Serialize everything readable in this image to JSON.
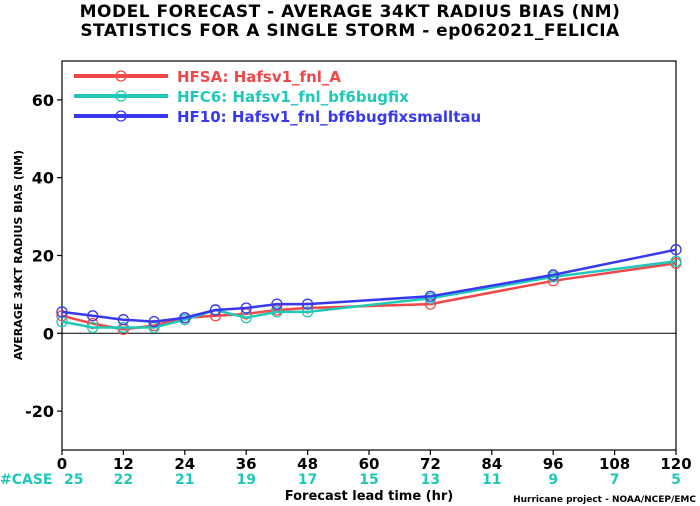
{
  "title_line1": "MODEL FORECAST - AVERAGE 34KT RADIUS BIAS (NM)",
  "title_line2": "STATISTICS FOR A SINGLE STORM - ep062021_FELICIA",
  "credit": "Hurricane project - NOAA/NCEP/EMC",
  "case_label": "#CASE",
  "colors": {
    "HFSA": "#f04848",
    "HFC6": "#20c8b8",
    "HF10": "#3838f0",
    "case": "#20c8b8"
  },
  "chart_data": {
    "type": "line",
    "xlabel": "Forecast lead time (hr)",
    "ylabel": "AVERAGE 34KT RADIUS BIAS (NM)",
    "xlim": [
      0,
      120
    ],
    "ylim": [
      -30,
      70
    ],
    "x_ticks": [
      0,
      12,
      24,
      36,
      48,
      60,
      72,
      84,
      96,
      108,
      120
    ],
    "y_ticks": [
      -20,
      0,
      20,
      40,
      60
    ],
    "legend_position": "top-left",
    "case_counts": [
      25,
      22,
      21,
      19,
      17,
      15,
      13,
      11,
      9,
      7,
      5
    ],
    "series": [
      {
        "name": "HFSA: Hafsv1_fnl_A",
        "key": "HFSA",
        "x": [
          0,
          6,
          12,
          18,
          24,
          30,
          36,
          42,
          48,
          72,
          96,
          120
        ],
        "y": [
          4.5,
          2.5,
          1.0,
          2.0,
          4.0,
          4.5,
          5.0,
          6.0,
          6.5,
          7.5,
          13.5,
          18.0
        ]
      },
      {
        "name": "HFC6: Hafsv1_fnl_bf6bugfix",
        "key": "HFC6",
        "x": [
          0,
          6,
          12,
          18,
          24,
          30,
          36,
          42,
          48,
          72,
          96,
          120
        ],
        "y": [
          3.0,
          1.5,
          1.5,
          1.5,
          3.5,
          6.0,
          4.0,
          5.5,
          5.5,
          9.0,
          14.5,
          18.5
        ]
      },
      {
        "name": "HF10: Hafsv1_fnl_bf6bugfixsmalltau",
        "key": "HF10",
        "x": [
          0,
          6,
          12,
          18,
          24,
          30,
          36,
          42,
          48,
          72,
          96,
          120
        ],
        "y": [
          5.5,
          4.5,
          3.5,
          3.0,
          4.0,
          6.0,
          6.5,
          7.5,
          7.5,
          9.5,
          15.0,
          21.5
        ]
      }
    ]
  }
}
